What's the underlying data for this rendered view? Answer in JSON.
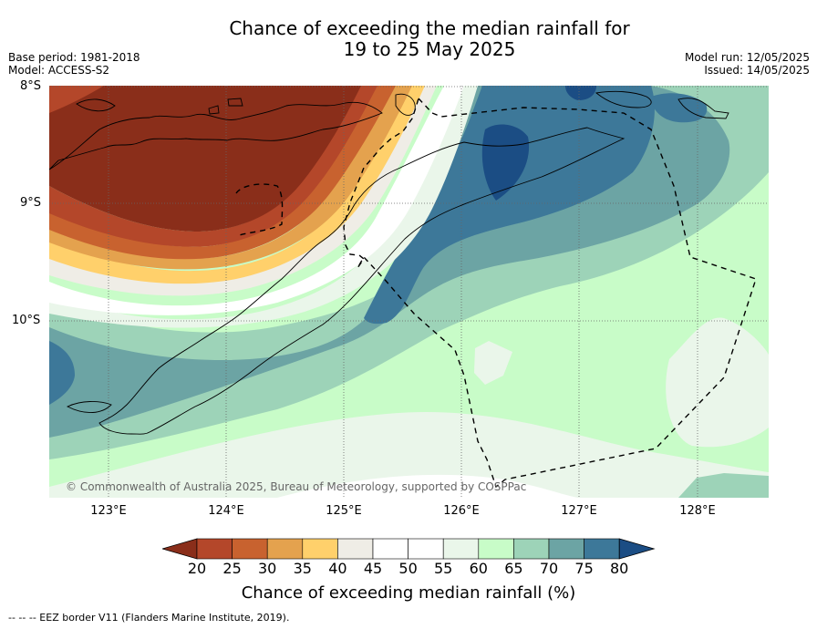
{
  "title": {
    "line1": "Chance of exceeding the median rainfall for",
    "line2": "19 to 25 May 2025"
  },
  "meta_left": {
    "base_period": "Base period: 1981-2018",
    "model": "Model: ACCESS-S2"
  },
  "meta_right": {
    "model_run": "Model run: 12/05/2025",
    "issued": "Issued: 14/05/2025"
  },
  "axes": {
    "lat_labels": [
      "8°S",
      "9°S",
      "10°S"
    ],
    "lon_labels": [
      "123°E",
      "124°E",
      "125°E",
      "126°E",
      "127°E",
      "128°E"
    ]
  },
  "copyright": "© Commonwealth of Australia 2025, Bureau of Meteorology, supported by COSPPac",
  "colorbar": {
    "ticks": [
      "20",
      "25",
      "30",
      "35",
      "40",
      "45",
      "50",
      "55",
      "60",
      "65",
      "70",
      "75",
      "80"
    ],
    "colors": [
      "#8a2e1a",
      "#b4472a",
      "#c8622f",
      "#e4a24e",
      "#ffd06b",
      "#efede6",
      "#ffffff",
      "#ffffff",
      "#eaf6ea",
      "#c8fcc8",
      "#9dd3b8",
      "#6ca4a4",
      "#3d7899",
      "#1b4d84"
    ],
    "title": "Chance of exceeding median rainfall (%)"
  },
  "footer": "--  --  -- EEZ border V11 (Flanders Marine Institute, 2019)."
}
